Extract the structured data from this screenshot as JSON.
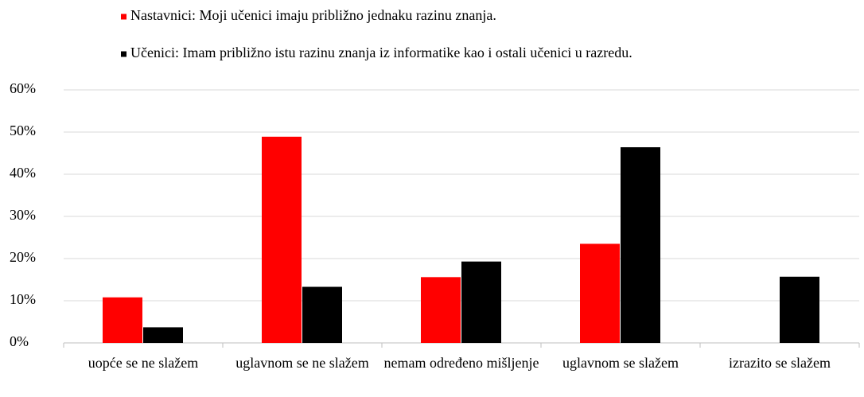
{
  "chart_data": {
    "type": "bar",
    "categories": [
      "uopće se ne slažem",
      "uglavnom se ne slažem",
      "nemam određeno mišljenje",
      "uglavnom se slažem",
      "izrazito se slažem"
    ],
    "series": [
      {
        "name": "Nastavnici: Moji učenici imaju približno jednaku razinu znanja.",
        "color": "#ff0000",
        "values": [
          10.8,
          48.9,
          15.6,
          23.5,
          0
        ]
      },
      {
        "name": "Učenici: Imam približno istu razinu znanja iz informatike kao i ostali učenici u razredu.",
        "color": "#000000",
        "values": [
          3.7,
          13.3,
          19.3,
          46.4,
          15.7
        ]
      }
    ],
    "ylim": [
      0,
      60
    ],
    "yticks": [
      {
        "value": 0,
        "label": "0%"
      },
      {
        "value": 10,
        "label": "10%"
      },
      {
        "value": 20,
        "label": "20%"
      },
      {
        "value": 30,
        "label": "30%"
      },
      {
        "value": 40,
        "label": "40%"
      },
      {
        "value": 50,
        "label": "50%"
      },
      {
        "value": 60,
        "label": "60%"
      }
    ],
    "grid": true,
    "legend": "top"
  }
}
